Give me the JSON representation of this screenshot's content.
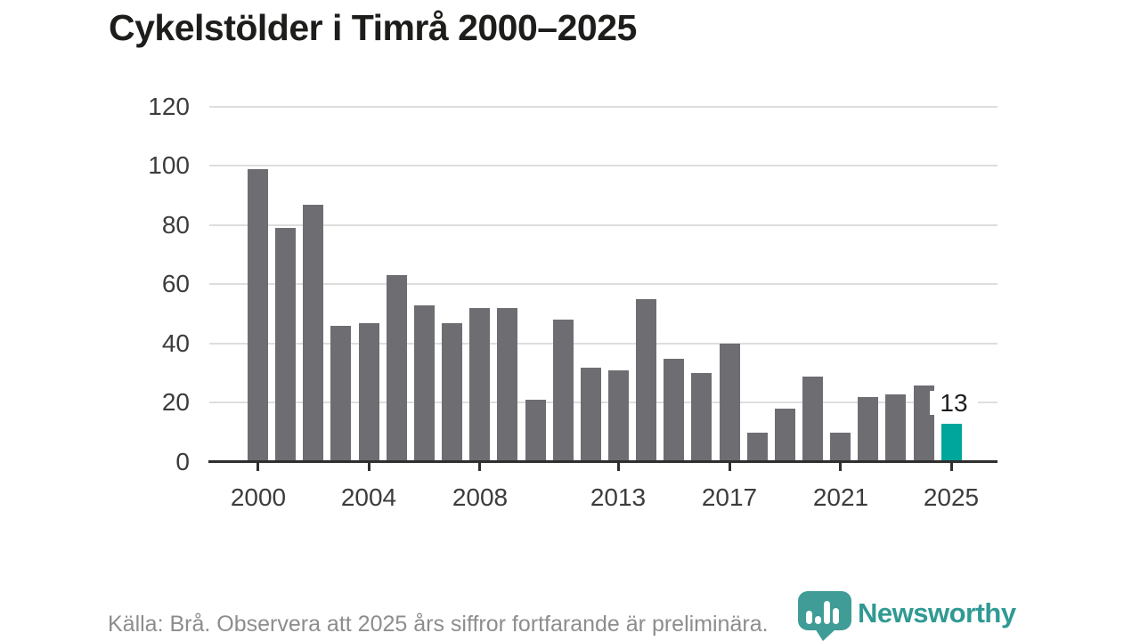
{
  "title": "Cykelstölder i Timrå 2000–2025",
  "footer": {
    "source_note": "Källa: Brå. Observera att 2025 års siffror fortfarande är preliminära."
  },
  "logo": {
    "text": "Newsworthy"
  },
  "colors": {
    "bar": "#6e6d72",
    "highlight": "#00a59c",
    "grid": "#dedede",
    "axis": "#2f2f2f",
    "axis_text": "#3c3c3c",
    "title_text": "#1d1d1b",
    "footer_text": "#8d8d8d",
    "logo_teal": "#3f9c96",
    "logo_text_teal": "#2f9a93"
  },
  "chart_data": {
    "type": "bar",
    "title": "Cykelstölder i Timrå 2000–2025",
    "x": [
      2000,
      2001,
      2002,
      2003,
      2004,
      2005,
      2006,
      2007,
      2008,
      2009,
      2010,
      2011,
      2012,
      2013,
      2014,
      2015,
      2016,
      2017,
      2018,
      2019,
      2020,
      2021,
      2022,
      2023,
      2024,
      2025
    ],
    "values": [
      99,
      79,
      87,
      46,
      47,
      63,
      53,
      47,
      52,
      52,
      21,
      48,
      32,
      31,
      55,
      35,
      30,
      40,
      10,
      18,
      29,
      10,
      22,
      23,
      26,
      13
    ],
    "x_ticks": [
      2000,
      2004,
      2008,
      2013,
      2017,
      2021,
      2025
    ],
    "y_ticks": [
      0,
      20,
      40,
      60,
      80,
      100,
      120
    ],
    "ylim": [
      0,
      120
    ],
    "xlabel": "",
    "ylabel": "",
    "grid": "horizontal",
    "legend": "none",
    "highlight_year": 2025,
    "annotation": {
      "year": 2025,
      "text": "13"
    }
  }
}
